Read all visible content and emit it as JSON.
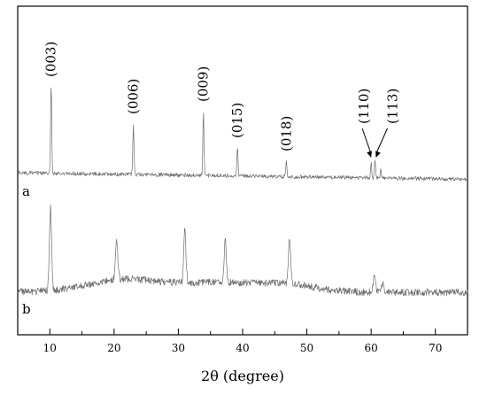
{
  "chart_data": {
    "type": "line",
    "xlabel": "2θ (degree)",
    "ylabel": "",
    "xlim": [
      5,
      75
    ],
    "x_ticks": [
      10,
      20,
      30,
      40,
      50,
      60,
      70
    ],
    "x_tick_labels": [
      "10",
      "20",
      "30",
      "40",
      "50",
      "60",
      "70"
    ],
    "grid": false,
    "series": [
      {
        "name": "a",
        "peaks": [
          {
            "x": 10.2,
            "intensity": 1.0
          },
          {
            "x": 23.0,
            "intensity": 0.58
          },
          {
            "x": 33.9,
            "intensity": 0.72
          },
          {
            "x": 39.2,
            "intensity": 0.31
          },
          {
            "x": 46.8,
            "intensity": 0.16
          },
          {
            "x": 60.0,
            "intensity": 0.17
          },
          {
            "x": 60.6,
            "intensity": 0.2
          },
          {
            "x": 61.5,
            "intensity": 0.09
          }
        ]
      },
      {
        "name": "b",
        "peaks": [
          {
            "x": 10.1,
            "intensity": 0.87
          },
          {
            "x": 20.4,
            "intensity": 0.41
          },
          {
            "x": 31.0,
            "intensity": 0.56
          },
          {
            "x": 37.3,
            "intensity": 0.45
          },
          {
            "x": 47.3,
            "intensity": 0.47
          },
          {
            "x": 60.5,
            "intensity": 0.17
          },
          {
            "x": 61.8,
            "intensity": 0.09
          }
        ]
      }
    ],
    "annotations": [
      {
        "text": "(003)",
        "x": 10.2
      },
      {
        "text": "(006)",
        "x": 23.0
      },
      {
        "text": "(009)",
        "x": 33.9
      },
      {
        "text": "(015)",
        "x": 39.2
      },
      {
        "text": "(018)",
        "x": 46.8
      },
      {
        "text": "(110)",
        "x": 60.0,
        "arrow": true
      },
      {
        "text": "(113)",
        "x": 60.6,
        "arrow": true
      }
    ]
  }
}
